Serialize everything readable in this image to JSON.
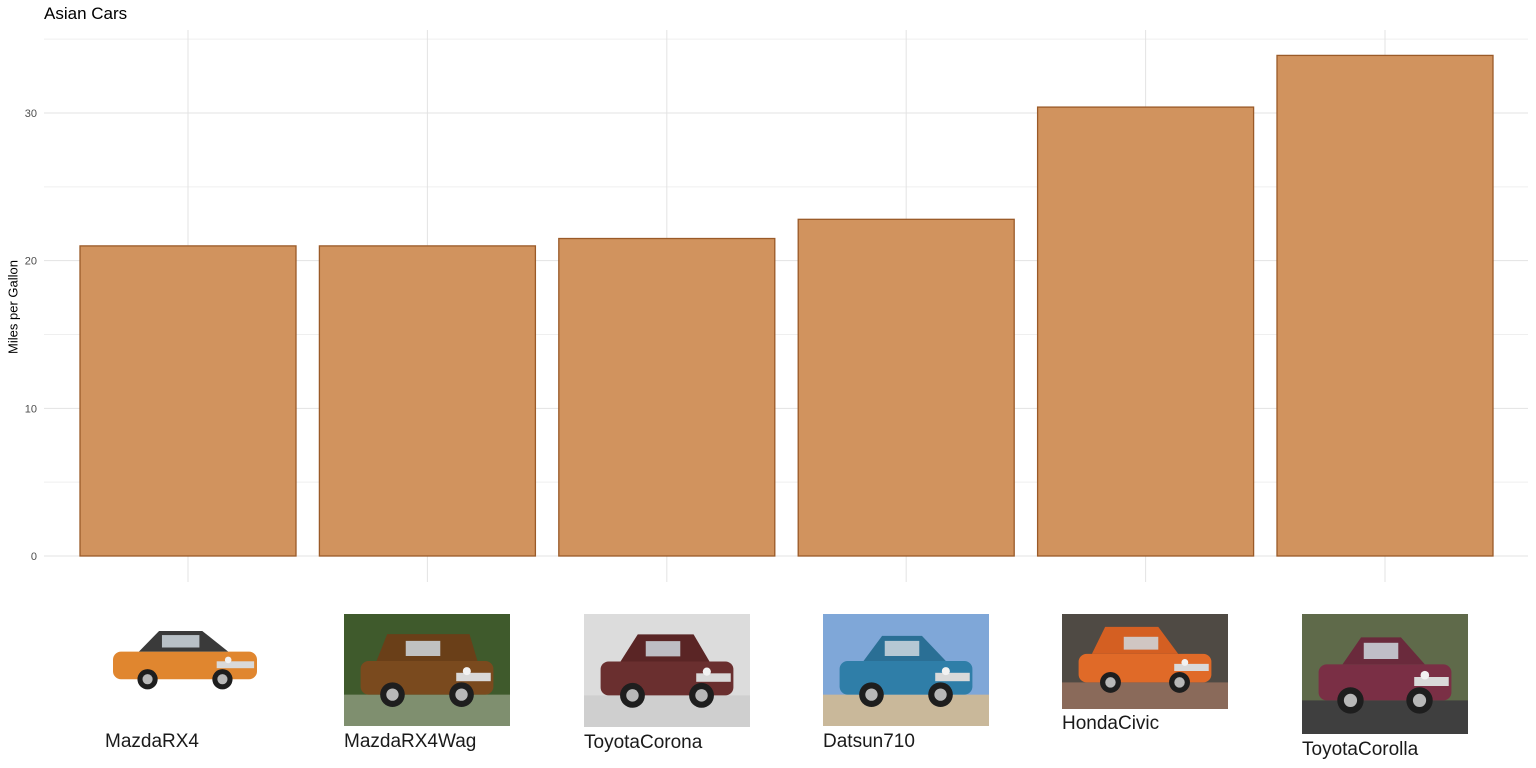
{
  "chart_data": {
    "type": "bar",
    "title": "Asian Cars",
    "xlabel": "",
    "ylabel": "Miles per Gallon",
    "categories": [
      "MazdaRX4",
      "MazdaRX4Wag",
      "ToyotaCorona",
      "Datsun710",
      "HondaCivic",
      "ToyotaCorolla"
    ],
    "values": [
      21.0,
      21.0,
      21.5,
      22.8,
      30.4,
      33.9
    ],
    "ylim": [
      0,
      35
    ],
    "yticks": [
      0,
      10,
      20,
      30
    ],
    "ytick_labels": [
      "0",
      "10",
      "20",
      "30"
    ],
    "grid": true,
    "legend": "none",
    "x_tick_images": [
      "orange-coupe-photo",
      "brown-wagon-photo",
      "maroon-sedan-photo",
      "blue-coupe-photo",
      "orange-hatchback-photo",
      "maroon-coupe-photo"
    ]
  },
  "colors": {
    "bar_fill": "#d1935e",
    "bar_stroke": "#9a5a28",
    "grid_major": "#e3e3e3",
    "grid_minor": "#efefef",
    "tick_text": "#4d4d4d"
  }
}
